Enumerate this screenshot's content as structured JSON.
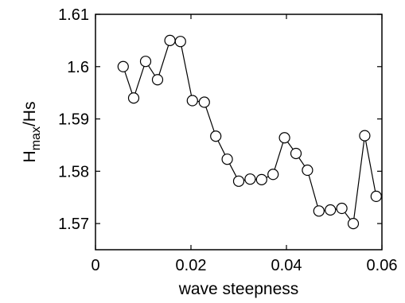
{
  "chart_data": {
    "type": "line",
    "title": "",
    "xlabel": "wave steepness",
    "ylabel": {
      "base": "H",
      "subscript": "max",
      "suffix": "/Hs"
    },
    "xlim": [
      0,
      0.06
    ],
    "ylim": [
      1.565,
      1.61
    ],
    "xticks": [
      0,
      0.02,
      0.04,
      0.06
    ],
    "xtick_labels": [
      "0",
      "0.02",
      "0.04",
      "0.06"
    ],
    "yticks": [
      1.57,
      1.58,
      1.59,
      1.6,
      1.61
    ],
    "ytick_labels": [
      "1.57",
      "1.58",
      "1.59",
      "1.6",
      "1.61"
    ],
    "grid": false,
    "marker": "open-circle",
    "line_color": "#000000",
    "series": [
      {
        "x": [
          0.0058,
          0.008,
          0.0105,
          0.013,
          0.0156,
          0.0178,
          0.0203,
          0.0228,
          0.0252,
          0.0276,
          0.03,
          0.0324,
          0.0348,
          0.0372,
          0.0396,
          0.042,
          0.0444,
          0.0468,
          0.0492,
          0.0516,
          0.054,
          0.0564,
          0.0588
        ],
        "y": [
          1.6,
          1.594,
          1.601,
          1.5975,
          1.605,
          1.6048,
          1.5935,
          1.5932,
          1.5867,
          1.5823,
          1.5781,
          1.5785,
          1.5784,
          1.5794,
          1.5864,
          1.5834,
          1.5802,
          1.5724,
          1.5726,
          1.5729,
          1.57,
          1.5868,
          1.5752
        ]
      }
    ]
  }
}
